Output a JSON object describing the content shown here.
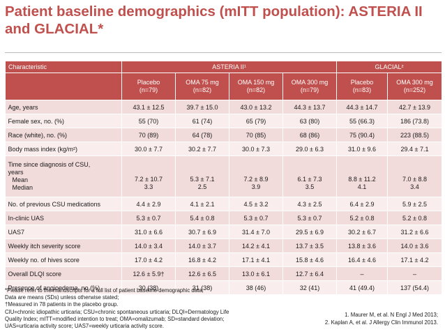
{
  "title": "Patient baseline demographics (mITT population): ASTERIA II and GLACIAL*",
  "table": {
    "characteristic_header": "Characteristic",
    "group_asteria": "ASTERIA II¹",
    "group_glacial": "GLACIAL²",
    "columns": [
      {
        "name": "Placebo",
        "n": "(n=79)"
      },
      {
        "name": "OMA 75 mg",
        "n": "(n=82)"
      },
      {
        "name": "OMA 150 mg",
        "n": "(n=82)"
      },
      {
        "name": "OMA 300 mg",
        "n": "(n=79)"
      },
      {
        "name": "Placebo",
        "n": "(n=83)"
      },
      {
        "name": "OMA 300 mg",
        "n": "(n=252)"
      }
    ],
    "rows": [
      {
        "label": "Age, years",
        "values": [
          "43.1 ± 12.5",
          "39.7 ± 15.0",
          "43.0 ± 13.2",
          "44.3 ± 13.7",
          "44.3 ± 14.7",
          "42.7 ± 13.9"
        ]
      },
      {
        "label": "Female sex, no. (%)",
        "values": [
          "55 (70)",
          "61 (74)",
          "65 (79)",
          "63 (80)",
          "55 (66.3)",
          "186 (73.8)"
        ]
      },
      {
        "label": "Race (white), no. (%)",
        "values": [
          "70 (89)",
          "64 (78)",
          "70 (85)",
          "68 (86)",
          "75 (90.4)",
          "223 (88.5)"
        ]
      },
      {
        "label": "Body mass index (kg/m²)",
        "values": [
          "30.0 ± 7.7",
          "30.2 ± 7.7",
          "30.0 ± 7.3",
          "29.0 ± 6.3",
          "31.0 ± 9.6",
          "29.4 ± 7.1"
        ]
      }
    ],
    "time_row": {
      "label_line1": "Time since diagnosis of  CSU,",
      "label_line2": "years",
      "mean_label": "Mean",
      "median_label": "Median",
      "mean_values": [
        "7.2 ± 10.7",
        "5.3 ± 7.1",
        "7.2 ± 8.9",
        "6.1 ± 7.3",
        "8.8 ± 11.2",
        "7.0 ± 8.8"
      ],
      "median_values": [
        "3.3",
        "2.5",
        "3.9",
        "3.5",
        "4.1",
        "3.4"
      ]
    },
    "rows2": [
      {
        "label": "No. of previous CSU medications",
        "values": [
          "4.4 ± 2.9",
          "4.1 ± 2.1",
          "4.5 ± 3.2",
          "4.3 ± 2.5",
          "6.4 ± 2.9",
          "5.9 ± 2.5"
        ]
      },
      {
        "label": "In-clinic UAS",
        "values": [
          "5.3 ± 0.7",
          "5.4 ± 0.8",
          "5.3 ± 0.7",
          "5.3 ± 0.7",
          "5.2 ± 0.8",
          "5.2 ± 0.8"
        ]
      },
      {
        "label": "UAS7",
        "values": [
          "31.0 ± 6.6",
          "30.7 ± 6.9",
          "31.4 ± 7.0",
          "29.5 ± 6.9",
          "30.2 ± 6.7",
          "31.2 ± 6.6"
        ]
      },
      {
        "label": "Weekly itch severity score",
        "values": [
          "14.0 ± 3.4",
          "14.0 ± 3.7",
          "14.2 ± 4.1",
          "13.7 ± 3.5",
          "13.8 ± 3.6",
          "14.0 ± 3.6"
        ]
      },
      {
        "label": "Weekly no. of hives score",
        "values": [
          "17.0 ± 4.2",
          "16.8 ± 4.2",
          "17.1 ± 4.1",
          "15.8 ± 4.6",
          "16.4 ± 4.6",
          "17.1 ± 4.2"
        ]
      },
      {
        "label": "Overall DLQI score",
        "values": [
          "12.6 ± 5.9†",
          "12.6 ± 6.5",
          "13.0 ± 6.1",
          "12.7 ± 6.4",
          "–",
          "–"
        ]
      },
      {
        "label": "Presence of angioedema, no (%)",
        "values": [
          "30 (38)",
          "31 (38)",
          "38 (46)",
          "32 (41)",
          "41 (49.4)",
          "137 (54.4)"
        ]
      }
    ]
  },
  "footnotes": [
    "*Please refer to the manuscripts for a full list of patient baseline demographic data;",
    "Data are means (SDs) unless otherwise stated;",
    "†Measured in 78 patients in the placebo group.",
    "CIU=chronic idiopathic urticaria; CSU=chronic spontaneous urticaria; DLQI=Dermatology Life",
    "Quality Index; mITT=modified intention to treat; OMA=omalizumab; SD=standard deviation;",
    "UAS=urticaria activity score; UAS7=weekly urticaria activity score."
  ],
  "references": [
    "1.   Maurer M, et al. N Engl J Med 2013;",
    "2.   Kaplan A, et al. J Allergy Clin Immunol 2013."
  ],
  "colors": {
    "accent": "#c0504d",
    "row_odd": "#f2dbdb",
    "row_even": "#f9eded"
  }
}
